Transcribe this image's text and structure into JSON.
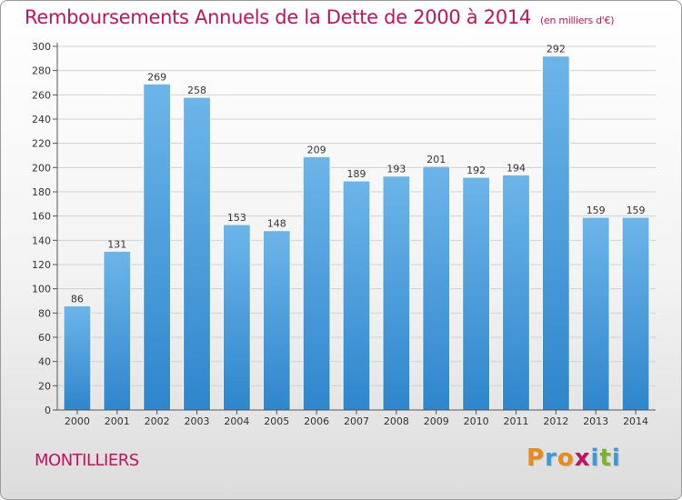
{
  "header": {
    "title": "Remboursements Annuels de la Dette de 2000 à 2014",
    "subtitle": "(en milliers d'€)"
  },
  "footer": {
    "city": "MONTILLIERS",
    "brand": "Proxiti"
  },
  "colors": {
    "bar": "#3d93d6",
    "bar_light": "#6db6ea",
    "title": "#c0135e",
    "grid": "#cfcfcf"
  },
  "chart_data": {
    "type": "bar",
    "title": "Remboursements Annuels de la Dette de 2000 à 2014",
    "categories": [
      "2000",
      "2001",
      "2002",
      "2003",
      "2004",
      "2005",
      "2006",
      "2007",
      "2008",
      "2009",
      "2010",
      "2011",
      "2012",
      "2013",
      "2014"
    ],
    "values": [
      86,
      131,
      269,
      258,
      153,
      148,
      209,
      189,
      193,
      201,
      192,
      194,
      292,
      159,
      159
    ],
    "ylim": [
      0,
      300
    ],
    "yticks": [
      0,
      20,
      40,
      60,
      80,
      100,
      120,
      140,
      160,
      180,
      200,
      220,
      240,
      260,
      280,
      300
    ],
    "grid": true,
    "data_labels": true
  }
}
